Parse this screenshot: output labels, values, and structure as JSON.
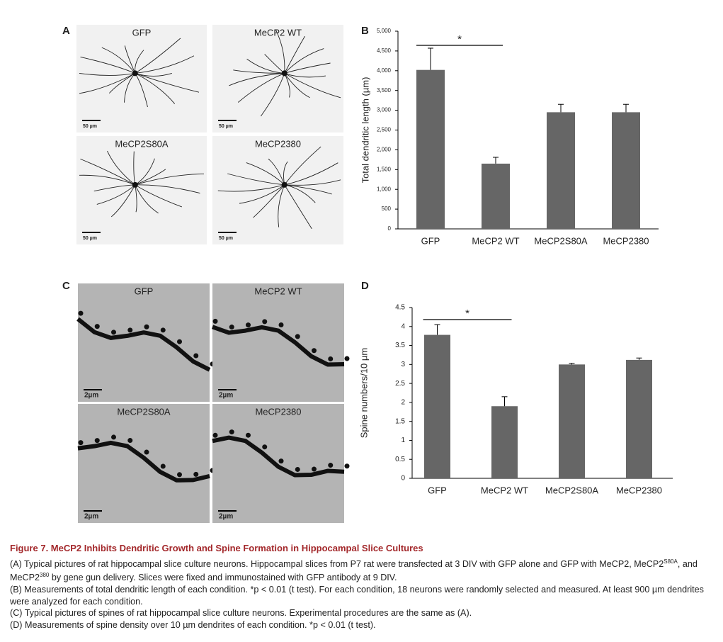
{
  "panels": [
    {
      "letter": "A",
      "style": "neuron",
      "images": [
        {
          "label": "GFP",
          "scale": "50 µm"
        },
        {
          "label": "MeCP2 WT",
          "scale": "50 µm"
        },
        {
          "label": "MeCP2S80A",
          "scale": "50 µm"
        },
        {
          "label": "MeCP2380",
          "scale": "50 µm"
        }
      ]
    },
    {
      "letter": "C",
      "style": "spine",
      "images": [
        {
          "label": "GFP",
          "scale": "2µm"
        },
        {
          "label": "MeCP2 WT",
          "scale": "2µm"
        },
        {
          "label": "MeCP2S80A",
          "scale": "2µm"
        },
        {
          "label": "MeCP2380",
          "scale": "2µm"
        }
      ]
    }
  ],
  "chart_data": [
    {
      "type": "bar",
      "letter": "B",
      "ylabel": "Total dendritic length (µm)",
      "annotation": "*",
      "categories": [
        "GFP",
        "MeCP2 WT",
        "MeCP2S80A",
        "MeCP2380"
      ],
      "values": [
        4020,
        1650,
        2950,
        2950
      ],
      "errors": [
        550,
        160,
        200,
        200
      ],
      "color": "#666666",
      "ylim": [
        0,
        5000
      ],
      "yticks": [
        0,
        500,
        {
          "value": 1000,
          "label": "1,000"
        },
        {
          "value": 1500,
          "label": "1,500"
        },
        {
          "value": 2000,
          "label": "2,000"
        },
        {
          "value": 2500,
          "label": "2,500"
        },
        {
          "value": 3000,
          "label": "3,000"
        },
        {
          "value": 3500,
          "label": "3,500"
        },
        {
          "value": 4000,
          "label": "4,000"
        },
        {
          "value": 4500,
          "label": "4,500"
        },
        {
          "value": 5000,
          "label": "5,000"
        }
      ]
    },
    {
      "type": "bar",
      "letter": "D",
      "ylabel": "Spine numbers/10 µm",
      "annotation": "*",
      "categories": [
        "GFP",
        "MeCP2 WT",
        "MeCP2S80A",
        "MeCP2380"
      ],
      "values": [
        3.78,
        1.9,
        3.0,
        3.12
      ],
      "errors": [
        0.27,
        0.25,
        0.03,
        0.05
      ],
      "color": "#666666",
      "ylim": [
        0,
        4.5
      ],
      "yticks": [
        0,
        0.5,
        1,
        1.5,
        2,
        2.5,
        3,
        3.5,
        4,
        4.5
      ]
    }
  ],
  "caption": {
    "title": "Figure 7.  MeCP2 Inhibits Dendritic Growth and Spine Formation in Hippocampal Slice Cultures",
    "paragraph_a": [
      {
        "text": "(A) Typical pictures of rat hippocampal slice culture neurons. Hippocampal slices from P7 rat were transfected at 3 DIV with GFP alone and GFP with MeCP2, MeCP2"
      },
      {
        "text": "S80A",
        "sup": true
      },
      {
        "text": ", and MeCP2"
      },
      {
        "text": "380",
        "sup": true
      },
      {
        "text": " by gene gun delivery. Slices were fixed and immunostained with GFP antibody at 9 DIV."
      }
    ],
    "paragraphs": [
      "(B) Measurements of total dendritic length of each condition. *p < 0.01 (t test). For each condition, 18 neurons were randomly selected and measured. At least 900 µm dendrites were analyzed for each condition.",
      "(C) Typical pictures of spines of rat hippocampal slice culture neurons. Experimental procedures are the same as (A).",
      "(D) Measurements of spine density over 10 µm dendrites of each condition. *p < 0.01 (t test)."
    ]
  }
}
